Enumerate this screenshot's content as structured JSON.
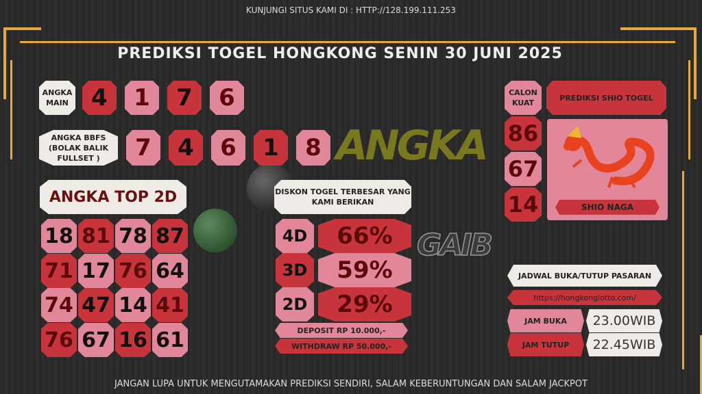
{
  "header": {
    "site": "KUNJUNGI SITUS KAMI DI : HTTP://128.199.111.253",
    "title": "PREDIKSI TOGEL HONGKONG SENIN 30 JUNI 2025"
  },
  "watermark": {
    "line1": "ANGKA",
    "line2": "GAIB"
  },
  "angka_main": {
    "label": "ANGKA MAIN",
    "numbers": [
      {
        "v": "4",
        "bg": "red",
        "c": "#111"
      },
      {
        "v": "1",
        "bg": "pink",
        "c": "#5a0a0a"
      },
      {
        "v": "7",
        "bg": "red",
        "c": "#111"
      },
      {
        "v": "6",
        "bg": "pink",
        "c": "#5a0a0a"
      }
    ]
  },
  "bbfs": {
    "label": "ANGKA BBFS (BOLAK BALIK FULLSET )",
    "numbers": [
      {
        "v": "7",
        "bg": "pink",
        "c": "#5a0a0a"
      },
      {
        "v": "4",
        "bg": "red",
        "c": "#111"
      },
      {
        "v": "6",
        "bg": "pink",
        "c": "#5a0a0a"
      },
      {
        "v": "1",
        "bg": "red",
        "c": "#111"
      },
      {
        "v": "8",
        "bg": "pink",
        "c": "#5a0a0a"
      }
    ]
  },
  "top2d": {
    "label": "ANGKA TOP 2D",
    "rows": [
      [
        {
          "v": "18",
          "bg": "pink",
          "c": "#111"
        },
        {
          "v": "81",
          "bg": "red",
          "c": "#5a0a0a"
        },
        {
          "v": "78",
          "bg": "pink",
          "c": "#111"
        },
        {
          "v": "87",
          "bg": "red",
          "c": "#111"
        }
      ],
      [
        {
          "v": "71",
          "bg": "red",
          "c": "#5a0a0a"
        },
        {
          "v": "17",
          "bg": "pink",
          "c": "#111"
        },
        {
          "v": "76",
          "bg": "red",
          "c": "#5a0a0a"
        },
        {
          "v": "64",
          "bg": "pink",
          "c": "#111"
        }
      ],
      [
        {
          "v": "74",
          "bg": "pink",
          "c": "#5a0a0a"
        },
        {
          "v": "47",
          "bg": "red",
          "c": "#111"
        },
        {
          "v": "14",
          "bg": "pink",
          "c": "#111"
        },
        {
          "v": "41",
          "bg": "red",
          "c": "#5a0a0a"
        }
      ],
      [
        {
          "v": "76",
          "bg": "red",
          "c": "#5a0a0a"
        },
        {
          "v": "67",
          "bg": "pink",
          "c": "#111"
        },
        {
          "v": "16",
          "bg": "red",
          "c": "#111"
        },
        {
          "v": "61",
          "bg": "pink",
          "c": "#111"
        }
      ]
    ]
  },
  "diskon": {
    "title": "DISKON TOGEL TERBESAR YANG KAMI BERIKAN",
    "rows": [
      {
        "type": "4D",
        "pct": "66%"
      },
      {
        "type": "3D",
        "pct": "59%"
      },
      {
        "type": "2D",
        "pct": "29%"
      }
    ],
    "deposit": "DEPOSIT RP 10.000,-",
    "withdraw": "WITHDRAW RP 50.000,-"
  },
  "shio": {
    "calon_label": "CALON KUAT",
    "title": "PREDIKSI SHIO TOGEL",
    "numbers": [
      "86",
      "67",
      "14"
    ],
    "name": "SHIO NAGA"
  },
  "jadwal": {
    "title": "JADWAL BUKA/TUTUP PASARAN",
    "url": "https://hongkonglotto.com/",
    "buka_label": "JAM BUKA",
    "buka": "23.00WIB",
    "tutup_label": "JAM TUTUP",
    "tutup": "22.45WIB"
  },
  "footer": "JANGAN LUPA UNTUK MENGUTAMAKAN PREDIKSI SENDIRI, SALAM KEBERUNTUNGAN DAN SALAM JACKPOT",
  "colors": {
    "red": "#c8343b",
    "pink": "#e2879a",
    "white": "#efebe7",
    "gold": "#e7a83c",
    "background": "#2a2a2a"
  }
}
